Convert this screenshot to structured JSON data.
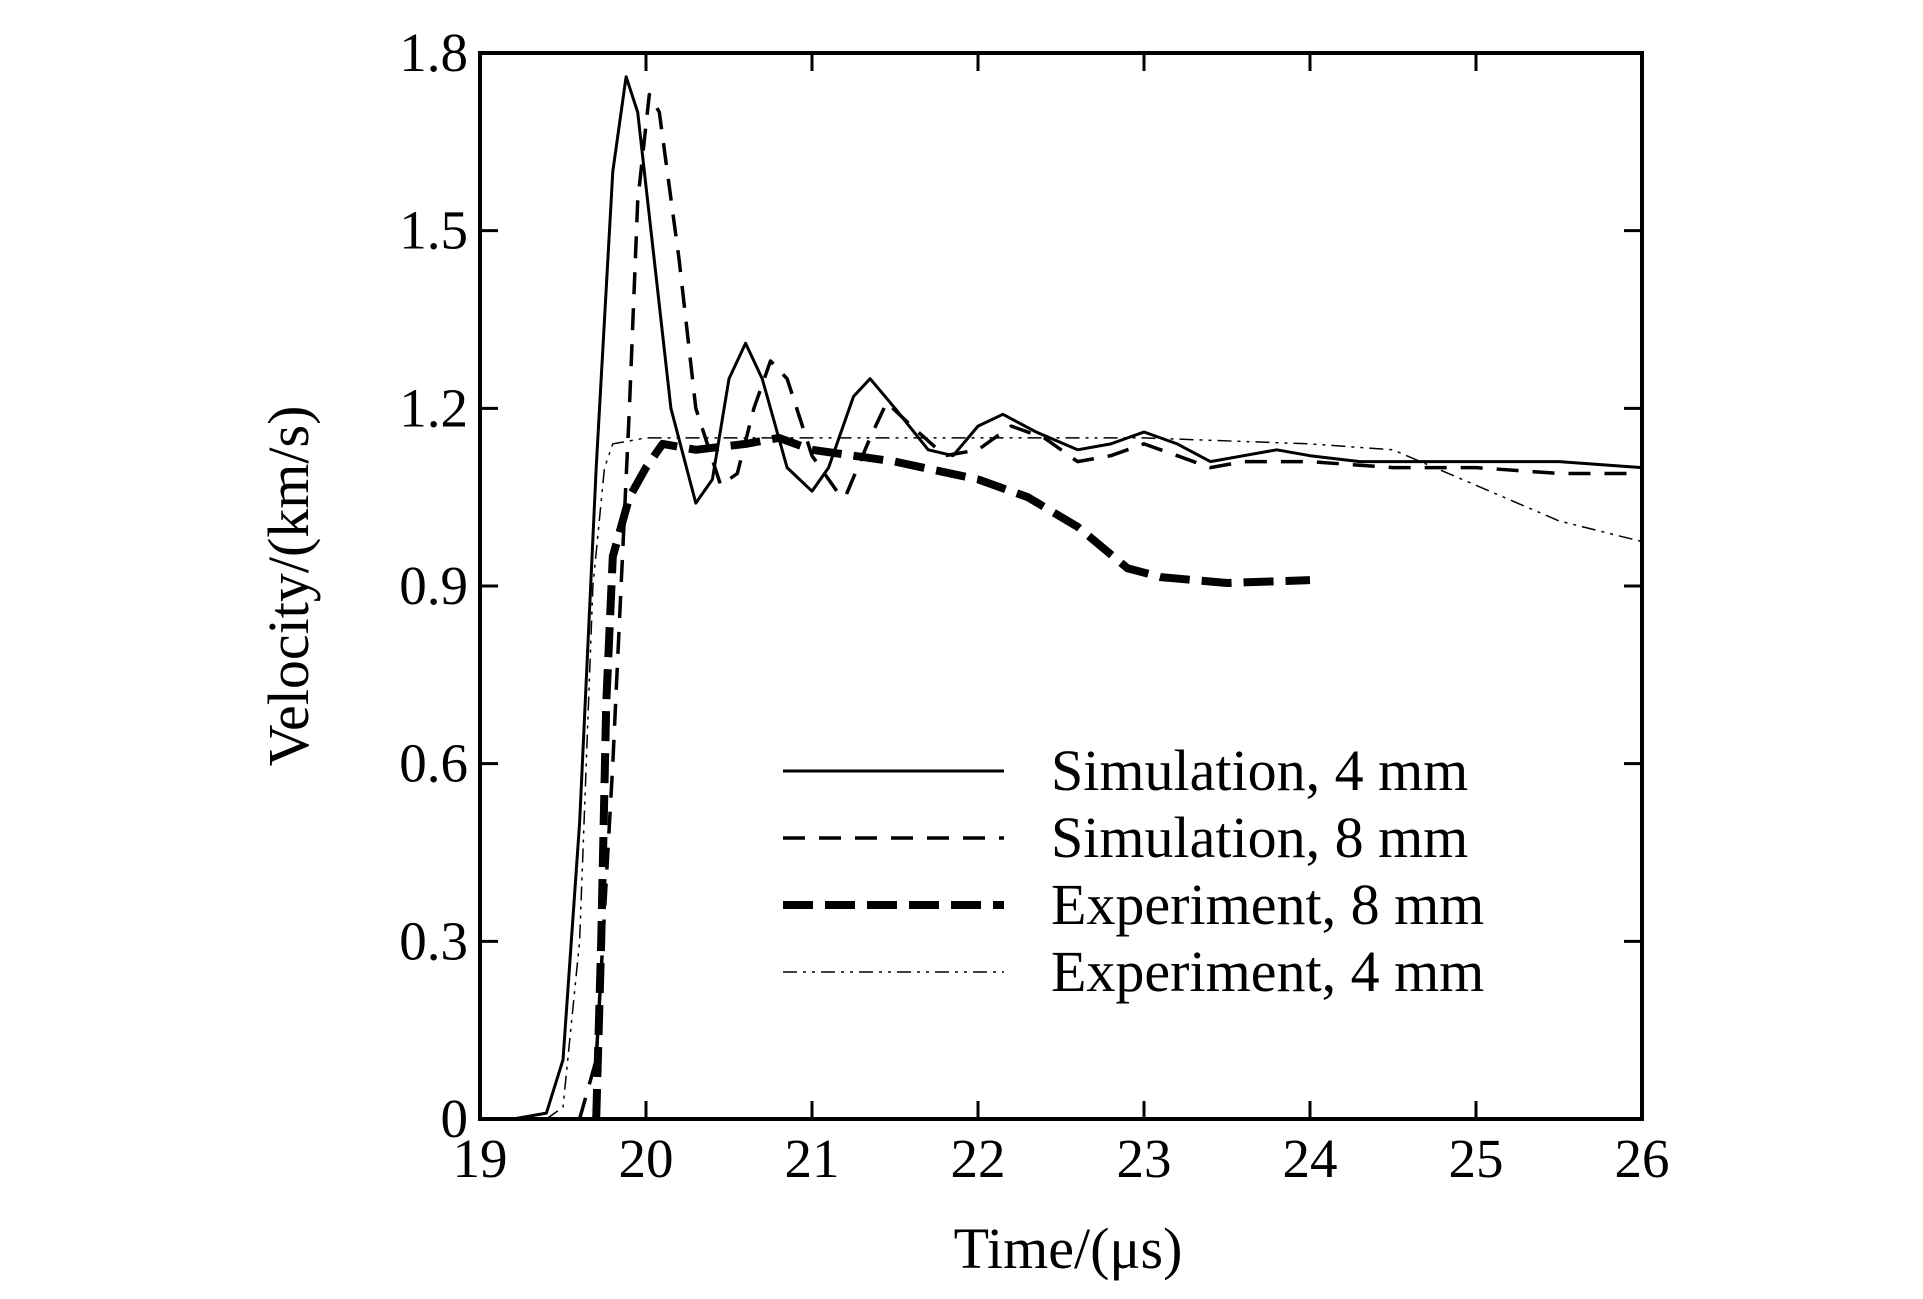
{
  "chart_data": {
    "type": "line",
    "x_label": "Time/(μs)",
    "y_label": "Velocity/(km/s)",
    "xlim": [
      19,
      26
    ],
    "xticks": [
      19,
      20,
      21,
      22,
      23,
      24,
      25,
      26
    ],
    "ylim": [
      0,
      1.8
    ],
    "yticks": [
      0,
      0.3,
      0.6,
      0.9,
      1.2,
      1.5,
      1.8
    ],
    "legend": "lower right",
    "series": [
      {
        "name": "Simulation, 4 mm",
        "color": "#000000",
        "dash": "solid",
        "width": 3,
        "x": [
          19.2,
          19.4,
          19.5,
          19.6,
          19.7,
          19.8,
          19.88,
          19.95,
          20.05,
          20.15,
          20.3,
          20.4,
          20.5,
          20.6,
          20.7,
          20.85,
          21.0,
          21.1,
          21.25,
          21.35,
          21.5,
          21.7,
          21.85,
          22.0,
          22.15,
          22.35,
          22.6,
          22.8,
          23.0,
          23.2,
          23.4,
          23.6,
          23.8,
          24.0,
          24.3,
          24.7,
          25.0,
          25.5,
          26.0
        ],
        "values": [
          0,
          0.01,
          0.1,
          0.5,
          1.1,
          1.6,
          1.76,
          1.7,
          1.45,
          1.2,
          1.04,
          1.08,
          1.25,
          1.31,
          1.25,
          1.1,
          1.06,
          1.1,
          1.22,
          1.25,
          1.2,
          1.13,
          1.12,
          1.17,
          1.19,
          1.16,
          1.13,
          1.14,
          1.16,
          1.14,
          1.11,
          1.12,
          1.13,
          1.12,
          1.11,
          1.11,
          1.11,
          1.11,
          1.1
        ]
      },
      {
        "name": "Simulation, 8 mm",
        "color": "#000000",
        "dash": "dashed",
        "width": 3.5,
        "x": [
          19.6,
          19.7,
          19.8,
          19.9,
          19.95,
          20.02,
          20.08,
          20.2,
          20.3,
          20.45,
          20.55,
          20.65,
          20.75,
          20.85,
          21.0,
          21.15,
          21.2,
          21.35,
          21.45,
          21.6,
          21.8,
          22.0,
          22.2,
          22.4,
          22.6,
          22.8,
          23.0,
          23.2,
          23.4,
          23.6,
          23.8,
          24.0,
          24.5,
          25.0,
          25.5,
          26.0
        ],
        "values": [
          0,
          0.1,
          0.6,
          1.2,
          1.55,
          1.73,
          1.7,
          1.45,
          1.2,
          1.07,
          1.09,
          1.2,
          1.28,
          1.25,
          1.12,
          1.06,
          1.05,
          1.15,
          1.21,
          1.17,
          1.12,
          1.13,
          1.17,
          1.15,
          1.11,
          1.12,
          1.14,
          1.12,
          1.1,
          1.11,
          1.11,
          1.11,
          1.1,
          1.1,
          1.09,
          1.09
        ]
      },
      {
        "name": "Experiment, 8 mm",
        "color": "#000000",
        "dash": "thick-dashed",
        "width": 8,
        "x": [
          19.7,
          19.73,
          19.76,
          19.8,
          19.9,
          20.0,
          20.1,
          20.3,
          20.6,
          20.8,
          21.0,
          21.5,
          22.0,
          22.3,
          22.6,
          22.9,
          23.1,
          23.5,
          24.0
        ],
        "values": [
          0,
          0.3,
          0.7,
          0.95,
          1.05,
          1.1,
          1.14,
          1.13,
          1.14,
          1.15,
          1.13,
          1.11,
          1.08,
          1.05,
          1.0,
          0.93,
          0.915,
          0.905,
          0.91
        ]
      },
      {
        "name": "Experiment, 4 mm",
        "color": "#000000",
        "dash": "dash-dot",
        "width": 1.5,
        "x": [
          19.4,
          19.5,
          19.6,
          19.68,
          19.75,
          19.8,
          20.0,
          21.0,
          22.0,
          23.0,
          24.0,
          24.5,
          25.0,
          25.5,
          26.0
        ],
        "values": [
          0,
          0.02,
          0.3,
          0.9,
          1.1,
          1.14,
          1.15,
          1.15,
          1.15,
          1.15,
          1.14,
          1.13,
          1.07,
          1.01,
          0.975
        ]
      }
    ]
  }
}
